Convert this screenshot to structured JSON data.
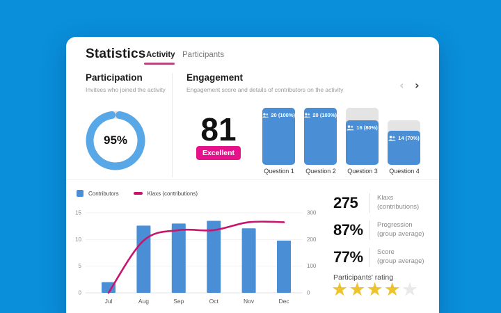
{
  "colors": {
    "background": "#0a8fdb",
    "accent_pink": "#e5128c",
    "tab_underline": "#b5487f",
    "bar_blue": "#4a8fd6",
    "donut_blue": "#58a7e6",
    "donut_track": "#e2e2e2",
    "line_pink": "#c6156f",
    "star_gold": "#eec32d",
    "star_empty": "#e9e9e9"
  },
  "icons": {
    "prev": "‹",
    "next": "›",
    "star": "★",
    "contributors": "people-icon"
  },
  "header": {
    "title": "Statistics",
    "tabs": [
      {
        "label": "Activity",
        "active": true
      },
      {
        "label": "Participants",
        "active": false
      }
    ]
  },
  "participation": {
    "title": "Participation",
    "subtitle": "Invitees who joined the activity",
    "percent_label": "95%",
    "value": 95
  },
  "engagement": {
    "title": "Engagement",
    "subtitle": "Engagement score and details of contributors on the activity",
    "score": "81",
    "score_label": "Excellent",
    "bars": [
      {
        "label": "Question 1",
        "value_label": "20 (100%)",
        "count": 20,
        "pct": 100,
        "track_pct": 100,
        "fill_pct": 100
      },
      {
        "label": "Question 2",
        "value_label": "20 (100%)",
        "count": 20,
        "pct": 100,
        "track_pct": 100,
        "fill_pct": 100
      },
      {
        "label": "Question 3",
        "value_label": "16 (80%)",
        "count": 16,
        "pct": 80,
        "track_pct": 100,
        "fill_pct": 78
      },
      {
        "label": "Question 4",
        "value_label": "14 (70%)",
        "count": 14,
        "pct": 70,
        "track_pct": 78,
        "fill_pct": 60
      }
    ]
  },
  "chart_data": {
    "type": "bar+line",
    "categories": [
      "Jul",
      "Aug",
      "Sep",
      "Oct",
      "Nov",
      "Dec"
    ],
    "series": [
      {
        "name": "Contributors",
        "type": "bar",
        "axis": "left",
        "color": "#4a8fd6",
        "values": [
          2,
          12.6,
          13,
          13.5,
          12.1,
          9.8
        ]
      },
      {
        "name": "Klaxs (contributions)",
        "type": "line",
        "axis": "right",
        "color": "#c6156f",
        "values": [
          0,
          196,
          235,
          235,
          265,
          265
        ]
      }
    ],
    "left_axis": {
      "ticks": [
        0,
        5,
        10,
        15
      ],
      "range": [
        0,
        15
      ]
    },
    "right_axis": {
      "ticks": [
        0,
        100,
        200,
        300
      ],
      "range": [
        0,
        300
      ]
    },
    "grid": true,
    "legend_position": "top-left"
  },
  "stats": {
    "items": [
      {
        "value": "275",
        "label_lines": [
          "Klaxs",
          "(contributions)"
        ]
      },
      {
        "value": "87%",
        "label_lines": [
          "Progression",
          "(group average)"
        ]
      },
      {
        "value": "77%",
        "label_lines": [
          "Score",
          "(group average)"
        ]
      }
    ],
    "rating_label": "Participants' rating",
    "rating": {
      "filled": 4,
      "total": 5
    }
  }
}
